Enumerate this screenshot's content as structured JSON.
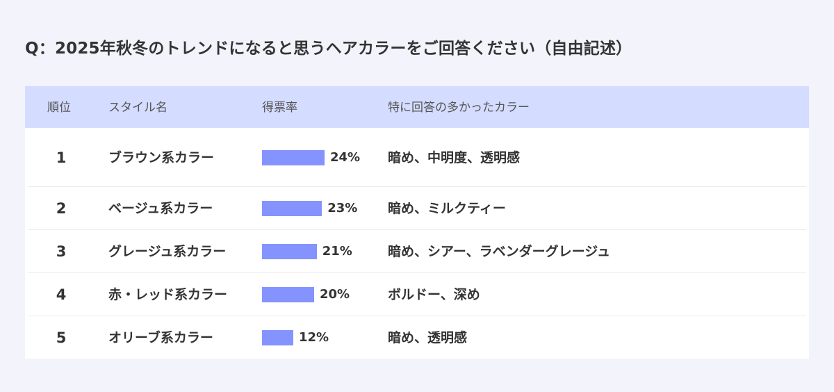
{
  "title": "Q：2025年秋冬のトレンドになると思うヘアカラーをご回答ください（自由記述）",
  "colors": {
    "background": "#f3f3fc",
    "header_background": "#d4dcff",
    "bar": "#8593ff",
    "text": "#333333"
  },
  "table": {
    "headers": {
      "rank": "順位",
      "style": "スタイル名",
      "rate": "得票率",
      "colors": "特に回答の多かったカラー"
    }
  },
  "chart_data": {
    "type": "bar",
    "title": "Q：2025年秋冬のトレンドになると思うヘアカラーをご回答ください（自由記述）",
    "orientation": "horizontal",
    "rows": [
      {
        "rank": "1",
        "style": "ブラウン系カラー",
        "value": 24,
        "label": "24%",
        "colors": "暗め、中明度、透明感"
      },
      {
        "rank": "2",
        "style": "ベージュ系カラー",
        "value": 23,
        "label": "23%",
        "colors": "暗め、ミルクティー"
      },
      {
        "rank": "3",
        "style": "グレージュ系カラー",
        "value": 21,
        "label": "21%",
        "colors": "暗め、シアー、ラベンダーグレージュ"
      },
      {
        "rank": "4",
        "style": "赤・レッド系カラー",
        "value": 20,
        "label": "20%",
        "colors": "ボルドー、深め"
      },
      {
        "rank": "5",
        "style": "オリーブ系カラー",
        "value": 12,
        "label": "12%",
        "colors": "暗め、透明感"
      }
    ]
  }
}
